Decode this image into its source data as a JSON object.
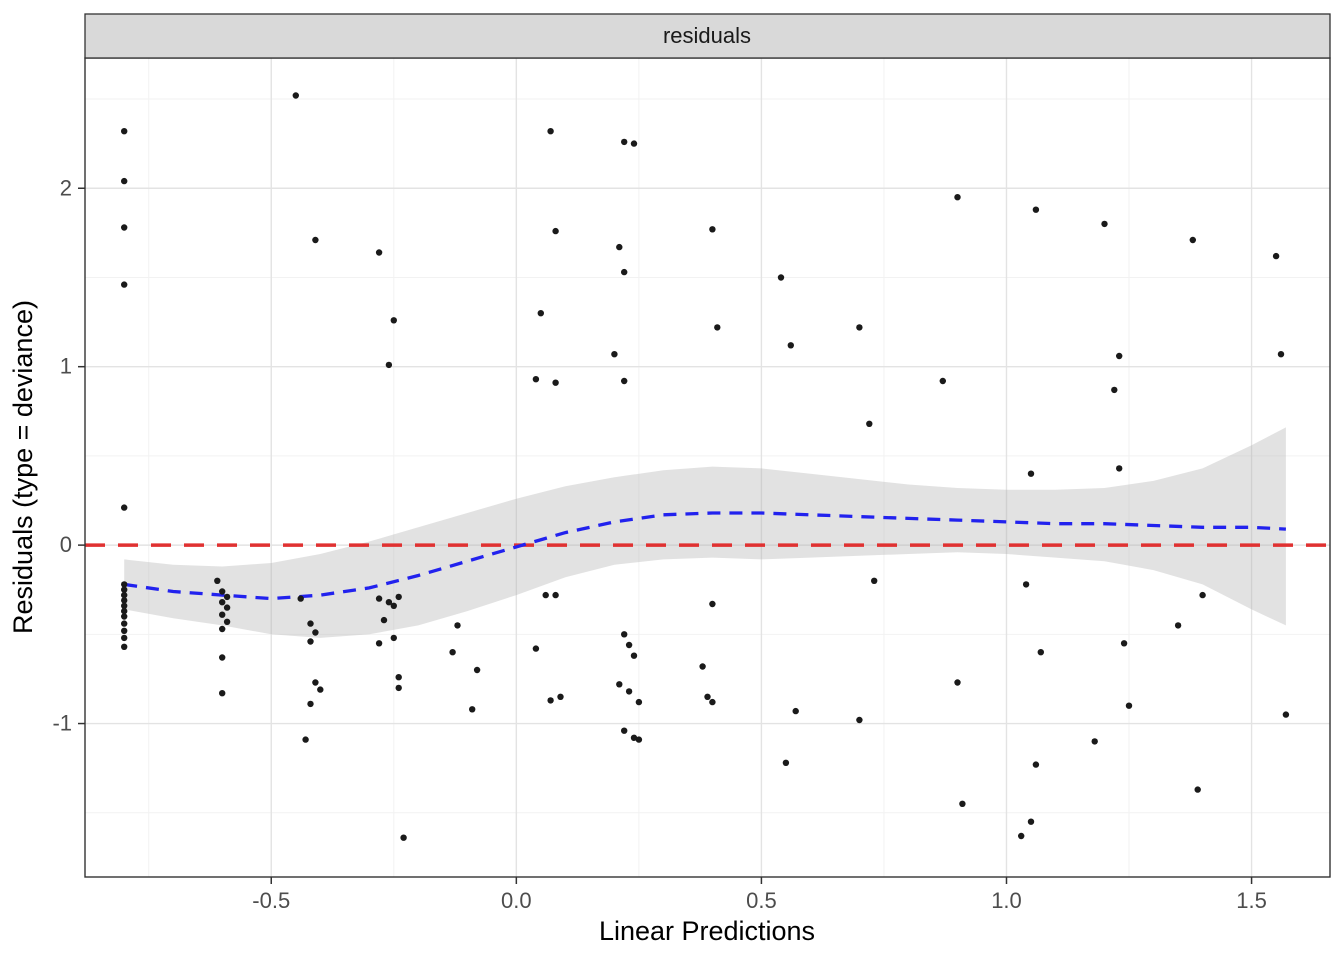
{
  "chart_data": {
    "type": "scatter",
    "facet_label": "residuals",
    "xlabel": "Linear Predictions",
    "ylabel": "Residuals (type = deviance)",
    "xlim": [
      -0.88,
      1.66
    ],
    "ylim": [
      -1.86,
      2.73
    ],
    "grid": true,
    "legend": "none",
    "x_ticks": {
      "values": [
        -0.5,
        0.0,
        0.5,
        1.0,
        1.5
      ],
      "labels": [
        "-0.5",
        "0.0",
        "0.5",
        "1.0",
        "1.5"
      ]
    },
    "y_ticks": {
      "values": [
        -1,
        0,
        1,
        2
      ],
      "labels": [
        "-1",
        "0",
        "1",
        "2"
      ]
    },
    "x_minor_ticks": [
      -0.75,
      -0.25,
      0.25,
      0.75,
      1.25
    ],
    "y_minor_ticks": [
      -1.5,
      -0.5,
      0.5,
      1.5,
      2.5
    ],
    "reference_line": {
      "y": 0,
      "color": "#E03131",
      "style": "dashed"
    },
    "smooth": {
      "color": "#2222EE",
      "style": "dashed",
      "ribbon_color": "#B3B3B3",
      "ribbon_opacity": 0.38,
      "x": [
        -0.8,
        -0.7,
        -0.6,
        -0.5,
        -0.4,
        -0.3,
        -0.2,
        -0.1,
        0.0,
        0.1,
        0.2,
        0.3,
        0.4,
        0.5,
        0.6,
        0.7,
        0.8,
        0.9,
        1.0,
        1.1,
        1.2,
        1.3,
        1.4,
        1.5,
        1.57
      ],
      "y": [
        -0.22,
        -0.26,
        -0.28,
        -0.3,
        -0.28,
        -0.24,
        -0.17,
        -0.09,
        -0.01,
        0.07,
        0.13,
        0.17,
        0.18,
        0.18,
        0.17,
        0.16,
        0.15,
        0.14,
        0.13,
        0.12,
        0.12,
        0.11,
        0.1,
        0.1,
        0.09
      ],
      "upper": [
        -0.08,
        -0.11,
        -0.12,
        -0.1,
        -0.05,
        0.02,
        0.1,
        0.18,
        0.26,
        0.33,
        0.38,
        0.42,
        0.44,
        0.43,
        0.4,
        0.37,
        0.34,
        0.32,
        0.31,
        0.31,
        0.32,
        0.36,
        0.43,
        0.56,
        0.66
      ],
      "lower": [
        -0.36,
        -0.41,
        -0.45,
        -0.5,
        -0.52,
        -0.5,
        -0.45,
        -0.37,
        -0.28,
        -0.18,
        -0.11,
        -0.08,
        -0.07,
        -0.08,
        -0.07,
        -0.06,
        -0.05,
        -0.04,
        -0.05,
        -0.07,
        -0.09,
        -0.14,
        -0.22,
        -0.36,
        -0.45
      ]
    },
    "point_color": "#1A1A1A",
    "points": [
      [
        -0.8,
        2.32
      ],
      [
        -0.8,
        2.04
      ],
      [
        -0.8,
        1.78
      ],
      [
        -0.8,
        1.46
      ],
      [
        -0.8,
        0.21
      ],
      [
        -0.8,
        -0.22
      ],
      [
        -0.8,
        -0.25
      ],
      [
        -0.8,
        -0.28
      ],
      [
        -0.8,
        -0.31
      ],
      [
        -0.8,
        -0.34
      ],
      [
        -0.8,
        -0.37
      ],
      [
        -0.8,
        -0.4
      ],
      [
        -0.8,
        -0.44
      ],
      [
        -0.8,
        -0.48
      ],
      [
        -0.8,
        -0.52
      ],
      [
        -0.8,
        -0.57
      ],
      [
        -0.61,
        -0.2
      ],
      [
        -0.6,
        -0.26
      ],
      [
        -0.59,
        -0.29
      ],
      [
        -0.6,
        -0.32
      ],
      [
        -0.59,
        -0.35
      ],
      [
        -0.6,
        -0.39
      ],
      [
        -0.59,
        -0.43
      ],
      [
        -0.6,
        -0.47
      ],
      [
        -0.6,
        -0.63
      ],
      [
        -0.6,
        -0.83
      ],
      [
        -0.45,
        2.52
      ],
      [
        -0.41,
        1.71
      ],
      [
        -0.28,
        1.64
      ],
      [
        -0.25,
        1.26
      ],
      [
        -0.26,
        1.01
      ],
      [
        -0.44,
        -0.3
      ],
      [
        -0.42,
        -0.44
      ],
      [
        -0.41,
        -0.49
      ],
      [
        -0.42,
        -0.54
      ],
      [
        -0.41,
        -0.77
      ],
      [
        -0.4,
        -0.81
      ],
      [
        -0.42,
        -0.89
      ],
      [
        -0.43,
        -1.09
      ],
      [
        -0.28,
        -0.3
      ],
      [
        -0.26,
        -0.32
      ],
      [
        -0.24,
        -0.29
      ],
      [
        -0.25,
        -0.34
      ],
      [
        -0.27,
        -0.42
      ],
      [
        -0.25,
        -0.52
      ],
      [
        -0.28,
        -0.55
      ],
      [
        -0.24,
        -0.74
      ],
      [
        -0.24,
        -0.8
      ],
      [
        -0.23,
        -1.64
      ],
      [
        -0.12,
        -0.45
      ],
      [
        -0.13,
        -0.6
      ],
      [
        -0.08,
        -0.7
      ],
      [
        -0.09,
        -0.92
      ],
      [
        0.07,
        2.32
      ],
      [
        0.08,
        1.76
      ],
      [
        0.05,
        1.3
      ],
      [
        0.04,
        0.93
      ],
      [
        0.08,
        0.91
      ],
      [
        0.06,
        -0.28
      ],
      [
        0.08,
        -0.28
      ],
      [
        0.04,
        -0.58
      ],
      [
        0.07,
        -0.87
      ],
      [
        0.09,
        -0.85
      ],
      [
        0.22,
        2.26
      ],
      [
        0.24,
        2.25
      ],
      [
        0.21,
        1.67
      ],
      [
        0.22,
        1.53
      ],
      [
        0.2,
        1.07
      ],
      [
        0.22,
        0.92
      ],
      [
        0.22,
        -0.5
      ],
      [
        0.23,
        -0.56
      ],
      [
        0.24,
        -0.62
      ],
      [
        0.21,
        -0.78
      ],
      [
        0.23,
        -0.82
      ],
      [
        0.25,
        -0.88
      ],
      [
        0.22,
        -1.04
      ],
      [
        0.24,
        -1.08
      ],
      [
        0.25,
        -1.09
      ],
      [
        0.4,
        1.77
      ],
      [
        0.41,
        1.22
      ],
      [
        0.4,
        -0.33
      ],
      [
        0.38,
        -0.68
      ],
      [
        0.39,
        -0.85
      ],
      [
        0.4,
        -0.88
      ],
      [
        0.54,
        1.5
      ],
      [
        0.56,
        1.12
      ],
      [
        0.55,
        -1.22
      ],
      [
        0.57,
        -0.93
      ],
      [
        0.7,
        1.22
      ],
      [
        0.72,
        0.68
      ],
      [
        0.7,
        -0.98
      ],
      [
        0.73,
        -0.2
      ],
      [
        0.9,
        1.95
      ],
      [
        0.87,
        0.92
      ],
      [
        0.9,
        -0.77
      ],
      [
        0.91,
        -1.45
      ],
      [
        1.06,
        1.88
      ],
      [
        1.05,
        0.4
      ],
      [
        1.04,
        -0.22
      ],
      [
        1.07,
        -0.6
      ],
      [
        1.06,
        -1.23
      ],
      [
        1.05,
        -1.55
      ],
      [
        1.03,
        -1.63
      ],
      [
        1.2,
        1.8
      ],
      [
        1.23,
        1.06
      ],
      [
        1.22,
        0.87
      ],
      [
        1.23,
        0.43
      ],
      [
        1.18,
        -1.1
      ],
      [
        1.24,
        -0.55
      ],
      [
        1.25,
        -0.9
      ],
      [
        1.38,
        1.71
      ],
      [
        1.35,
        -0.45
      ],
      [
        1.4,
        -0.28
      ],
      [
        1.39,
        -1.37
      ],
      [
        1.55,
        1.62
      ],
      [
        1.56,
        1.07
      ],
      [
        1.57,
        -0.95
      ]
    ],
    "colors": {
      "strip_fill": "#D9D9D9",
      "panel_border": "#333333",
      "grid_major": "#E3E3E3",
      "grid_minor": "#F2F2F2",
      "tick_label": "#4D4D4D",
      "axis_title": "#000000"
    }
  }
}
